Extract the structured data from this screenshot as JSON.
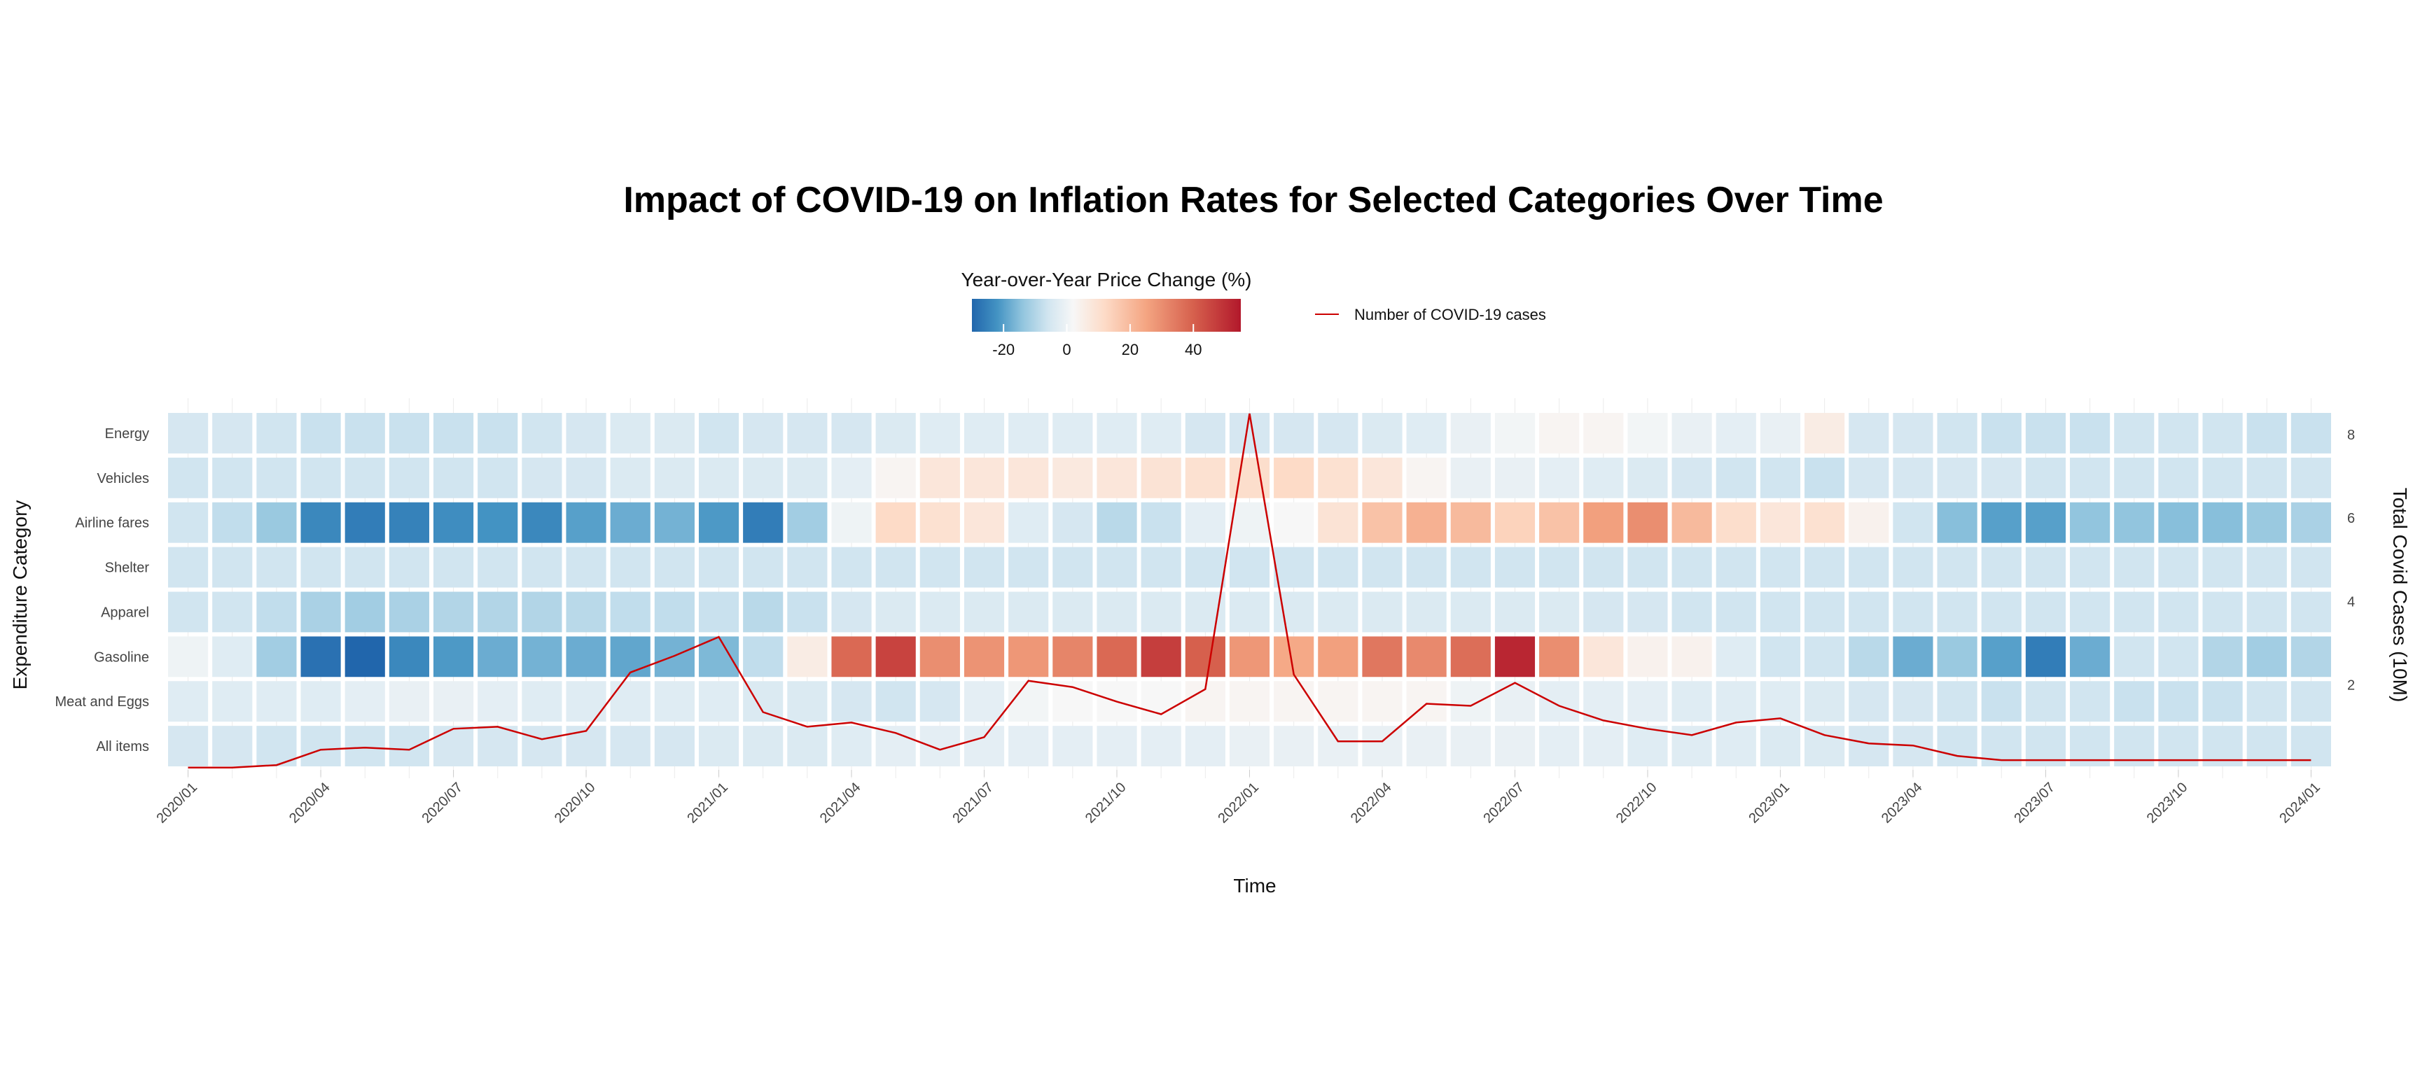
{
  "chart_data": {
    "type": "heatmap",
    "title": "Impact of COVID-19 on Inflation Rates for Selected Categories Over Time",
    "xlabel": "Time",
    "ylabel": "Expenditure Category",
    "ylabel_right": "Total Covid Cases (10M)",
    "color_legend": {
      "title": "Year-over-Year Price Change (%)",
      "range": [
        -30,
        55
      ],
      "ticks": [
        "-20",
        "0",
        "20",
        "40"
      ],
      "tick_values": [
        -20,
        0,
        20,
        40
      ],
      "colors": [
        "#2166ac",
        "#4393c3",
        "#92c5de",
        "#d1e5f0",
        "#f7f7f7",
        "#fddbc7",
        "#f4a582",
        "#d6604d",
        "#b2182b"
      ],
      "color_stops": [
        -30,
        -22,
        -14,
        -6,
        2,
        12,
        25,
        40,
        55
      ]
    },
    "line_legend": {
      "label": "Number of COVID-19 cases",
      "color": "#cc0000"
    },
    "months": [
      "2020/01",
      "2020/02",
      "2020/03",
      "2020/04",
      "2020/05",
      "2020/06",
      "2020/07",
      "2020/08",
      "2020/09",
      "2020/10",
      "2020/11",
      "2020/12",
      "2021/01",
      "2021/02",
      "2021/03",
      "2021/04",
      "2021/05",
      "2021/06",
      "2021/07",
      "2021/08",
      "2021/09",
      "2021/10",
      "2021/11",
      "2021/12",
      "2022/01",
      "2022/02",
      "2022/03",
      "2022/04",
      "2022/05",
      "2022/06",
      "2022/07",
      "2022/08",
      "2022/09",
      "2022/10",
      "2022/11",
      "2022/12",
      "2023/01",
      "2023/02",
      "2023/03",
      "2023/04",
      "2023/05",
      "2023/06",
      "2023/07",
      "2023/08",
      "2023/09",
      "2023/10",
      "2023/11",
      "2023/12",
      "2024/01"
    ],
    "x_ticks": [
      "2020/01",
      "2020/04",
      "2020/07",
      "2020/10",
      "2021/01",
      "2021/04",
      "2021/07",
      "2021/10",
      "2022/01",
      "2022/04",
      "2022/07",
      "2022/10",
      "2023/01",
      "2023/04",
      "2023/07",
      "2023/10",
      "2024/01"
    ],
    "categories": [
      "Energy",
      "Vehicles",
      "Airline fares",
      "Shelter",
      "Apparel",
      "Gasoline",
      "Meat and Eggs",
      "All items"
    ],
    "heat_values": {
      "Energy": [
        -5,
        -5,
        -6,
        -7,
        -7,
        -7,
        -7,
        -7,
        -6,
        -5,
        -4,
        -4,
        -6,
        -5,
        -5,
        -5,
        -4,
        -3,
        -3,
        -3,
        -3,
        -3,
        -3,
        -5,
        -5,
        -5,
        -5,
        -4,
        -3,
        -1,
        1,
        3,
        3,
        1,
        -1,
        -2,
        -1,
        6,
        -5,
        -5,
        -6,
        -7,
        -7,
        -7,
        -6,
        -6,
        -6,
        -7,
        -7
      ],
      "Vehicles": [
        -6,
        -6,
        -6,
        -6,
        -6,
        -6,
        -6,
        -6,
        -5,
        -5,
        -4,
        -4,
        -4,
        -4,
        -4,
        -2,
        3,
        8,
        8,
        8,
        7,
        8,
        9,
        10,
        11,
        12,
        10,
        8,
        3,
        -1,
        -1,
        -2,
        -3,
        -4,
        -5,
        -6,
        -6,
        -7,
        -5,
        -5,
        -5,
        -5,
        -6,
        -6,
        -6,
        -6,
        -6,
        -6,
        -6
      ],
      "Airline fares": [
        -6,
        -8,
        -13,
        -24,
        -26,
        -25,
        -23,
        -22,
        -24,
        -20,
        -18,
        -17,
        -21,
        -26,
        -12,
        0,
        12,
        10,
        8,
        -3,
        -5,
        -9,
        -7,
        -2,
        0,
        2,
        9,
        18,
        22,
        20,
        14,
        18,
        26,
        30,
        20,
        11,
        8,
        10,
        4,
        -6,
        -15,
        -20,
        -20,
        -14,
        -14,
        -15,
        -15,
        -13,
        -11
      ],
      "Shelter": [
        -6,
        -6,
        -6,
        -6,
        -6,
        -6,
        -6,
        -6,
        -6,
        -6,
        -6,
        -6,
        -6,
        -6,
        -6,
        -6,
        -6,
        -6,
        -6,
        -6,
        -6,
        -6,
        -6,
        -6,
        -6,
        -6,
        -6,
        -6,
        -6,
        -6,
        -6,
        -6,
        -6,
        -6,
        -6,
        -6,
        -6,
        -6,
        -6,
        -6,
        -6,
        -6,
        -6,
        -6,
        -6,
        -6,
        -6,
        -6,
        -6
      ],
      "Apparel": [
        -6,
        -6,
        -8,
        -11,
        -12,
        -11,
        -10,
        -10,
        -10,
        -9,
        -8,
        -8,
        -7,
        -9,
        -7,
        -5,
        -4,
        -4,
        -4,
        -4,
        -4,
        -4,
        -4,
        -4,
        -4,
        -4,
        -4,
        -4,
        -4,
        -4,
        -4,
        -4,
        -5,
        -5,
        -6,
        -6,
        -6,
        -6,
        -6,
        -6,
        -6,
        -6,
        -6,
        -6,
        -6,
        -6,
        -6,
        -6,
        -6
      ],
      "Gasoline": [
        0,
        -3,
        -12,
        -28,
        -32,
        -24,
        -21,
        -18,
        -17,
        -18,
        -19,
        -17,
        -16,
        -8,
        6,
        38,
        46,
        30,
        29,
        28,
        32,
        38,
        47,
        40,
        28,
        24,
        26,
        35,
        31,
        37,
        52,
        30,
        8,
        4,
        4,
        -3,
        -6,
        -6,
        -9,
        -18,
        -13,
        -20,
        -26,
        -18,
        -6,
        -6,
        -10,
        -12,
        -10
      ],
      "Meat and Eggs": [
        -3,
        -3,
        -3,
        -3,
        -2,
        -1,
        -1,
        -2,
        -3,
        -3,
        -3,
        -3,
        -3,
        -4,
        -4,
        -5,
        -6,
        -5,
        -2,
        1,
        2,
        2,
        2,
        3,
        3,
        3,
        3,
        3,
        3,
        0,
        -1,
        -2,
        -2,
        -2,
        -3,
        -3,
        -3,
        -4,
        -5,
        -5,
        -6,
        -7,
        -6,
        -6,
        -7,
        -7,
        -7,
        -6,
        -6
      ],
      "All items": [
        -5,
        -5,
        -6,
        -6,
        -6,
        -6,
        -5,
        -5,
        -5,
        -5,
        -5,
        -5,
        -4,
        -4,
        -4,
        -3,
        -2,
        -2,
        -2,
        -2,
        -2,
        -2,
        -2,
        -2,
        -1,
        -1,
        -1,
        -1,
        -1,
        -1,
        -1,
        -2,
        -2,
        -3,
        -3,
        -3,
        -4,
        -4,
        -5,
        -5,
        -6,
        -6,
        -6,
        -6,
        -6,
        -6,
        -6,
        -6,
        -6
      ]
    },
    "covid_cases": [
      0.02,
      0.02,
      0.08,
      0.45,
      0.5,
      0.45,
      0.95,
      1.0,
      0.7,
      0.9,
      2.3,
      2.7,
      3.15,
      1.35,
      1.0,
      1.1,
      0.85,
      0.45,
      0.75,
      2.1,
      1.95,
      1.6,
      1.3,
      1.9,
      8.5,
      2.25,
      0.65,
      0.65,
      1.55,
      1.5,
      2.05,
      1.5,
      1.15,
      0.95,
      0.8,
      1.1,
      1.2,
      0.8,
      0.6,
      0.55,
      0.3,
      0.2,
      0.2,
      0.2,
      0.2,
      0.2,
      0.2,
      0.2,
      0.2
    ],
    "y_right_ticks": [
      "2",
      "4",
      "6",
      "8"
    ],
    "y_right_values": [
      2,
      4,
      6,
      8
    ],
    "y_right_range": [
      0,
      8.5
    ]
  }
}
